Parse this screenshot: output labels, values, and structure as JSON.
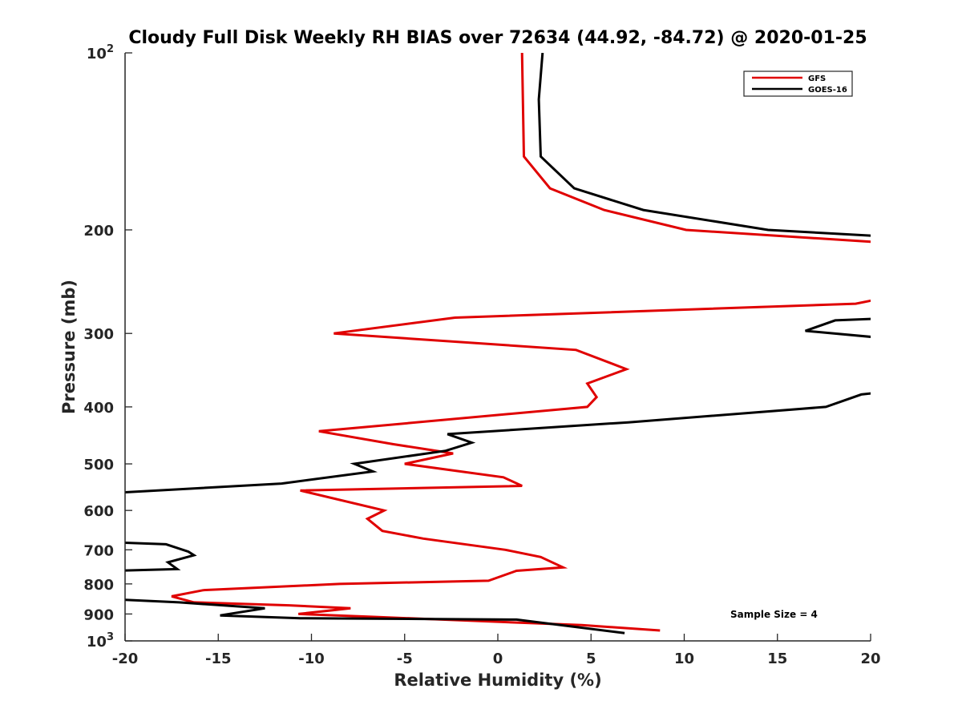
{
  "chart_data": {
    "type": "line",
    "title": "Cloudy Full Disk Weekly RH BIAS over 72634 (44.92, -84.72) @ 2020-01-25",
    "xlabel": "Relative Humidity (%)",
    "ylabel": "Pressure (mb)",
    "xlim": [
      -20,
      20
    ],
    "ylim": [
      100,
      1000
    ],
    "yscale": "log",
    "y_reversed": true,
    "grid": false,
    "legend_position": "top-right",
    "x_ticks": [
      {
        "value": -20,
        "label": "-20"
      },
      {
        "value": -15,
        "label": "-15"
      },
      {
        "value": -10,
        "label": "-10"
      },
      {
        "value": -5,
        "label": "-5"
      },
      {
        "value": 0,
        "label": "0"
      },
      {
        "value": 5,
        "label": "5"
      },
      {
        "value": 10,
        "label": "10"
      },
      {
        "value": 15,
        "label": "15"
      },
      {
        "value": 20,
        "label": "20"
      }
    ],
    "y_ticks": [
      {
        "value": 100,
        "label": "10",
        "sup": "2"
      },
      {
        "value": 200,
        "label": "200"
      },
      {
        "value": 300,
        "label": "300"
      },
      {
        "value": 400,
        "label": "400"
      },
      {
        "value": 500,
        "label": "500"
      },
      {
        "value": 600,
        "label": "600"
      },
      {
        "value": 700,
        "label": "700"
      },
      {
        "value": 800,
        "label": "800"
      },
      {
        "value": 900,
        "label": "900"
      },
      {
        "value": 1000,
        "label": "10",
        "sup": "3"
      }
    ],
    "series": [
      {
        "name": "GFS",
        "color": "#e00000",
        "points": [
          [
            1.3,
            100
          ],
          [
            1.4,
            150
          ],
          [
            2.8,
            170
          ],
          [
            5.7,
            185
          ],
          [
            10.1,
            200
          ],
          [
            20.5,
            210
          ],
          [
            20.5,
            262
          ],
          [
            19.2,
            267
          ],
          [
            -2.3,
            282
          ],
          [
            -8.8,
            300
          ],
          [
            4.2,
            320
          ],
          [
            6.9,
            345
          ],
          [
            4.8,
            365
          ],
          [
            5.3,
            385
          ],
          [
            4.8,
            400
          ],
          [
            -9.6,
            440
          ],
          [
            -5.6,
            463
          ],
          [
            -2.4,
            480
          ],
          [
            -5.0,
            500
          ],
          [
            0.3,
            527
          ],
          [
            1.3,
            545
          ],
          [
            -10.6,
            555
          ],
          [
            -6.1,
            600
          ],
          [
            -7.0,
            620
          ],
          [
            -6.2,
            650
          ],
          [
            -4.0,
            670
          ],
          [
            0.4,
            700
          ],
          [
            2.3,
            720
          ],
          [
            3.5,
            750
          ],
          [
            1.0,
            760
          ],
          [
            -0.5,
            790
          ],
          [
            -8.5,
            800
          ],
          [
            -15.8,
            820
          ],
          [
            -17.5,
            840
          ],
          [
            -16.3,
            860
          ],
          [
            -11.2,
            870
          ],
          [
            -7.9,
            880
          ],
          [
            -10.7,
            900
          ],
          [
            -6.8,
            910
          ],
          [
            4.5,
            940
          ],
          [
            8.7,
            960
          ]
        ]
      },
      {
        "name": "GOES-16",
        "color": "#000000",
        "points": [
          [
            2.4,
            100
          ],
          [
            2.2,
            120
          ],
          [
            2.3,
            150
          ],
          [
            4.1,
            170
          ],
          [
            7.8,
            185
          ],
          [
            14.5,
            200
          ],
          [
            20.5,
            205
          ],
          [
            20.5,
            283
          ],
          [
            18.1,
            285
          ],
          [
            16.5,
            297
          ],
          [
            20.5,
            305
          ],
          [
            20.5,
            378
          ],
          [
            19.5,
            381
          ],
          [
            17.6,
            400
          ],
          [
            7.0,
            425
          ],
          [
            -2.7,
            445
          ],
          [
            -1.4,
            460
          ],
          [
            -2.8,
            475
          ],
          [
            -7.7,
            500
          ],
          [
            -6.7,
            515
          ],
          [
            -11.6,
            540
          ],
          [
            -20.5,
            560
          ],
          [
            -20.5,
            680
          ],
          [
            -17.8,
            685
          ],
          [
            -16.6,
            705
          ],
          [
            -16.3,
            715
          ],
          [
            -17.7,
            735
          ],
          [
            -17.2,
            755
          ],
          [
            -20.5,
            760
          ],
          [
            -20.5,
            850
          ],
          [
            -17.1,
            860
          ],
          [
            -12.5,
            880
          ],
          [
            -14.9,
            905
          ],
          [
            -10.6,
            915
          ],
          [
            1.0,
            920
          ],
          [
            6.8,
            970
          ]
        ]
      }
    ],
    "annotations": [
      {
        "text": "Sample Size = 4"
      }
    ]
  }
}
